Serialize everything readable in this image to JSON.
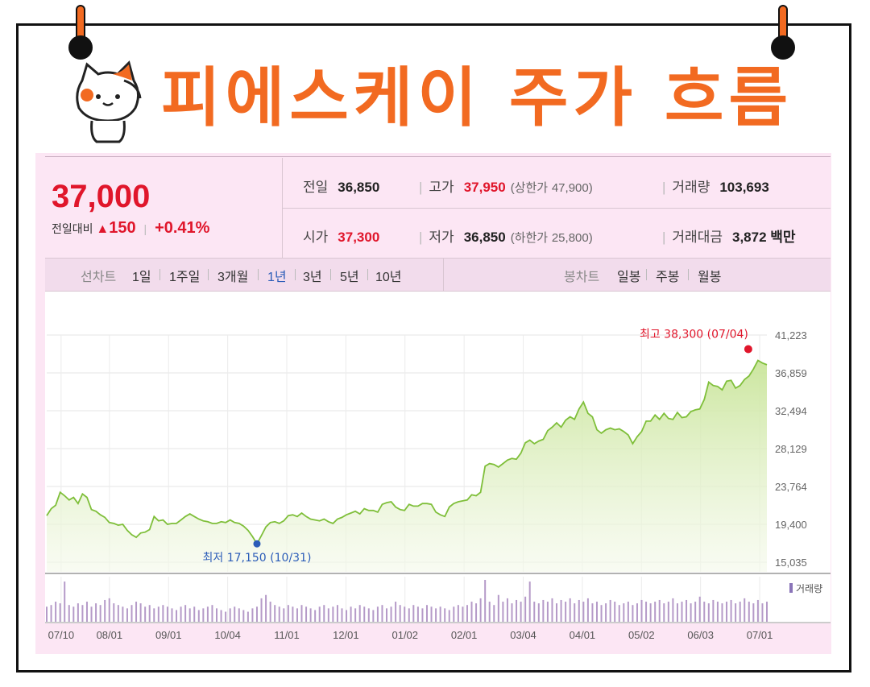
{
  "title": "피에스케이 주가 흐름",
  "quote": {
    "price": "37,000",
    "change_label": "전일대비",
    "change_arrow": "▲",
    "change_value": "150",
    "change_pct": "+0.41%"
  },
  "stats": {
    "prev_close_label": "전일",
    "prev_close": "36,850",
    "high_label": "고가",
    "high": "37,950",
    "upper_limit_label": "(상한가",
    "upper_limit": "47,900)",
    "volume_label": "거래량",
    "volume": "103,693",
    "open_label": "시가",
    "open": "37,300",
    "low_label": "저가",
    "low": "36,850",
    "lower_limit_label": "(하한가",
    "lower_limit": "25,800)",
    "trade_value_label": "거래대금",
    "trade_value": "3,872",
    "trade_value_unit": "백만"
  },
  "tabs": {
    "line_chart_label": "선차트",
    "periods": [
      "1일",
      "1주일",
      "3개월",
      "1년",
      "3년",
      "5년",
      "10년"
    ],
    "active_period": "1년",
    "candle_chart_label": "봉차트",
    "candle_periods": [
      "일봉",
      "주봉",
      "월봉"
    ]
  },
  "colors": {
    "accent": "#f26a21",
    "up": "#e0162b",
    "low_marker": "#2b5cb8",
    "line": "#7fbf3a",
    "fill": "#c9e59a",
    "panel": "#fce6f4"
  },
  "chart_data": {
    "type": "area",
    "xlabel": "",
    "ylabel": "",
    "ylim": [
      15035,
      41223
    ],
    "yticks": [
      "41,223",
      "36,859",
      "32,494",
      "28,129",
      "23,764",
      "19,400",
      "15,035"
    ],
    "x_ticks": [
      "07/10",
      "08/01",
      "09/01",
      "10/04",
      "11/01",
      "12/01",
      "01/02",
      "02/01",
      "03/04",
      "04/01",
      "05/02",
      "06/03",
      "07/01"
    ],
    "series": [
      {
        "values": [
          20400,
          21200,
          21600,
          23100,
          22700,
          22200,
          22500,
          21800,
          22900,
          22500,
          21100,
          20900,
          20500,
          20200,
          19600,
          19500,
          19300,
          19400,
          18700,
          18200,
          17900,
          18400,
          18500,
          18800,
          20300,
          19800,
          19900,
          19400,
          19500,
          19500,
          19900,
          20300,
          20600,
          20300,
          20000,
          19800,
          19700,
          19500,
          19500,
          19700,
          19600,
          19900,
          19600,
          19500,
          19200,
          18700,
          18000,
          17150,
          18100,
          19100,
          19600,
          19700,
          19500,
          19800,
          20400,
          20500,
          20300,
          20700,
          20300,
          20000,
          19900,
          19800,
          20000,
          19700,
          19500,
          20000,
          20200,
          20500,
          20700,
          20900,
          20600,
          21200,
          21000,
          21000,
          20800,
          21700,
          21900,
          22000,
          21400,
          21100,
          21000,
          21700,
          21500,
          21500,
          21800,
          21800,
          21700,
          20800,
          20500,
          20300,
          21400,
          21800,
          22000,
          22100,
          22200,
          22800,
          22700,
          23100,
          26100,
          26400,
          26300,
          26000,
          26400,
          26800,
          27000,
          26900,
          27600,
          28800,
          29100,
          28700,
          29000,
          29200,
          30200,
          30600,
          31100,
          30600,
          31400,
          31800,
          31500,
          32700,
          33500,
          32200,
          31800,
          30300,
          29900,
          30300,
          30500,
          30300,
          30400,
          30100,
          29700,
          28700,
          29500,
          30100,
          31300,
          31300,
          32000,
          31500,
          32200,
          31600,
          31500,
          32300,
          31700,
          31800,
          32400,
          32600,
          32700,
          33800,
          35800,
          35400,
          35300,
          34900,
          35900,
          36000,
          35100,
          35400,
          36100,
          36500,
          37300,
          38300,
          38000,
          37800
        ]
      }
    ],
    "annotations": {
      "high": "최고 38,300 (07/04)",
      "low": "최저 17,150 (10/31)"
    },
    "volume": {
      "legend": "거래량",
      "values": [
        9,
        10,
        12,
        11,
        24,
        10,
        9,
        11,
        10,
        12,
        9,
        11,
        10,
        13,
        14,
        11,
        10,
        9,
        8,
        10,
        12,
        11,
        9,
        10,
        8,
        9,
        10,
        9,
        8,
        7,
        9,
        10,
        8,
        9,
        7,
        8,
        9,
        10,
        8,
        7,
        6,
        8,
        9,
        8,
        7,
        6,
        8,
        9,
        14,
        16,
        12,
        10,
        9,
        8,
        10,
        9,
        8,
        10,
        9,
        8,
        7,
        9,
        10,
        8,
        9,
        10,
        8,
        7,
        9,
        8,
        10,
        9,
        8,
        7,
        9,
        10,
        8,
        9,
        12,
        10,
        9,
        8,
        10,
        9,
        8,
        10,
        9,
        8,
        9,
        8,
        7,
        9,
        10,
        9,
        10,
        12,
        11,
        14,
        25,
        12,
        10,
        16,
        12,
        14,
        11,
        13,
        12,
        15,
        24,
        12,
        11,
        13,
        12,
        14,
        11,
        13,
        12,
        14,
        11,
        13,
        12,
        14,
        11,
        12,
        10,
        11,
        13,
        12,
        10,
        11,
        12,
        10,
        11,
        13,
        12,
        11,
        12,
        13,
        11,
        12,
        14,
        11,
        12,
        13,
        11,
        12,
        15,
        12,
        11,
        13,
        12,
        11,
        12,
        13,
        11,
        12,
        14,
        12,
        11,
        13,
        11,
        12
      ]
    }
  }
}
